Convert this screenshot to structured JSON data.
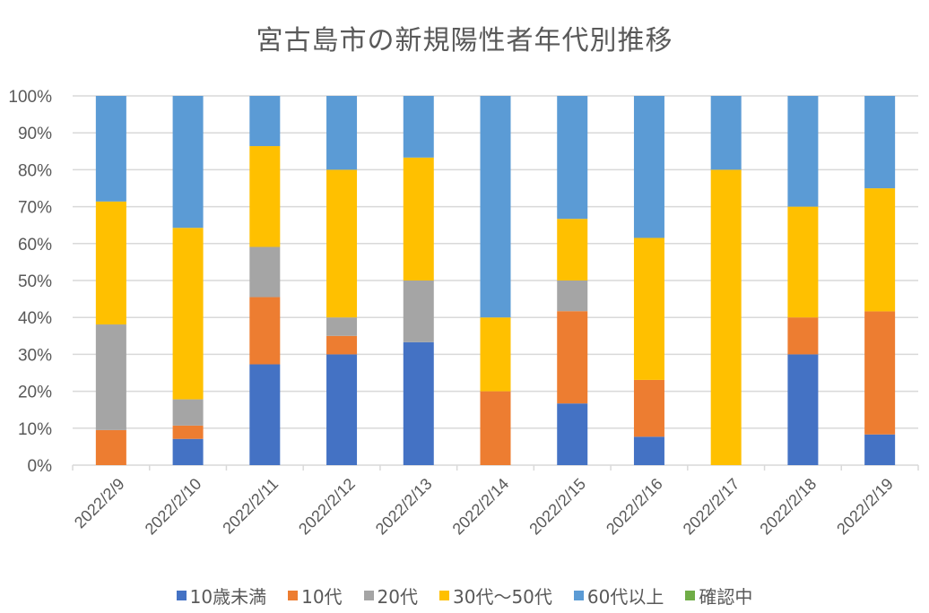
{
  "chart_data": {
    "type": "bar",
    "stacked": "percent",
    "title": "宮古島市の新規陽性者年代別推移",
    "xlabel": "",
    "ylabel": "",
    "ylim": [
      0,
      100
    ],
    "yticks": [
      "0%",
      "10%",
      "20%",
      "30%",
      "40%",
      "50%",
      "60%",
      "70%",
      "80%",
      "90%",
      "100%"
    ],
    "grid": true,
    "legend_position": "bottom",
    "categories": [
      "2022/2/9",
      "2022/2/10",
      "2022/2/11",
      "2022/2/12",
      "2022/2/13",
      "2022/2/14",
      "2022/2/15",
      "2022/2/16",
      "2022/2/17",
      "2022/2/18",
      "2022/2/19"
    ],
    "series": [
      {
        "name": "10歳未満",
        "color": "#4472C4",
        "values": [
          0,
          7.1,
          27.3,
          30.0,
          33.3,
          0,
          16.7,
          7.7,
          0,
          30.0,
          8.3
        ]
      },
      {
        "name": "10代",
        "color": "#ED7D31",
        "values": [
          9.5,
          3.6,
          18.2,
          5.0,
          0,
          20.0,
          25.0,
          15.4,
          0,
          10.0,
          33.3
        ]
      },
      {
        "name": "20代",
        "color": "#A5A5A5",
        "values": [
          28.6,
          7.1,
          13.6,
          5.0,
          16.7,
          0,
          8.3,
          0,
          0,
          0,
          0
        ]
      },
      {
        "name": "30代～50代",
        "color": "#FFC000",
        "values": [
          33.3,
          46.4,
          27.3,
          40.0,
          33.3,
          20.0,
          16.7,
          38.5,
          80.0,
          30.0,
          33.3
        ]
      },
      {
        "name": "60代以上",
        "color": "#5B9BD5",
        "values": [
          28.6,
          35.7,
          13.6,
          20.0,
          16.7,
          60.0,
          33.3,
          38.5,
          20.0,
          30.0,
          25.0
        ]
      },
      {
        "name": "確認中",
        "color": "#70AD47",
        "values": [
          0,
          0,
          0,
          0,
          0,
          0,
          0,
          0,
          0,
          0,
          0
        ]
      }
    ]
  }
}
